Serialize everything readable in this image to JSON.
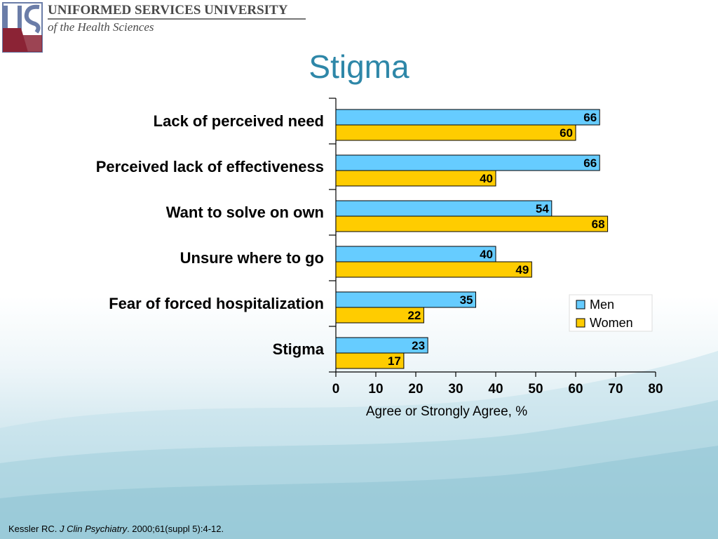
{
  "slide": {
    "title": "Stigma",
    "logo": {
      "line1": "UNIFORMED SERVICES UNIVERSITY",
      "line2": "of the Health Sciences"
    },
    "citation": {
      "author": "Kessler RC.",
      "journal": "J Clin Psychiatry",
      "details": ". 2000;61(suppl 5):4-12."
    }
  },
  "colors": {
    "men": "#66ccff",
    "women": "#ffcc00",
    "title": "#2e87a8"
  },
  "chart_data": {
    "type": "bar",
    "orientation": "horizontal",
    "categories": [
      "Lack of perceived need",
      "Perceived lack of effectiveness",
      "Want to solve on own",
      "Unsure where to go",
      "Fear of forced hospitalization",
      "Stigma"
    ],
    "series": [
      {
        "name": "Men",
        "values": [
          66,
          66,
          54,
          40,
          35,
          23
        ]
      },
      {
        "name": "Women",
        "values": [
          60,
          40,
          68,
          49,
          22,
          17
        ]
      }
    ],
    "xlabel": "Agree or Strongly Agree, %",
    "xlim": [
      0,
      80
    ],
    "xticks": [
      0,
      10,
      20,
      30,
      40,
      50,
      60,
      70,
      80
    ],
    "legend": "right",
    "grid": false,
    "data_labels": true
  }
}
